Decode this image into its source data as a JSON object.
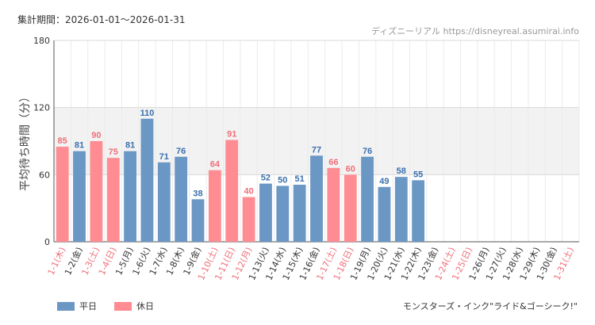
{
  "header": {
    "period_label": "集計期間：2026-01-01〜2026-01-31",
    "source_label": "ディズニーリアル https://disneyreal.asumirai.info"
  },
  "footer": {
    "attraction_title": "モンスターズ・インク\"ライド&ゴーシーク!\""
  },
  "colors": {
    "weekday": "#6b97c5",
    "holiday": "#ff8c92",
    "weekday_text": "#3a70ad",
    "holiday_text": "#ef6f79",
    "band": "#f2f2f2"
  },
  "chart_data": {
    "type": "bar",
    "ylabel": "平均待ち時間（分）",
    "ylim": [
      0,
      180
    ],
    "yticks": [
      0,
      60,
      120,
      180
    ],
    "bands": [
      [
        60,
        120
      ]
    ],
    "legend": [
      {
        "name": "平日",
        "kind": "weekday"
      },
      {
        "name": "休日",
        "kind": "holiday"
      }
    ],
    "categories": [
      "1-1(木)",
      "1-2(金)",
      "1-3(土)",
      "1-4(日)",
      "1-5(月)",
      "1-6(火)",
      "1-7(水)",
      "1-8(木)",
      "1-9(金)",
      "1-10(土)",
      "1-11(日)",
      "1-12(月)",
      "1-13(火)",
      "1-14(水)",
      "1-15(木)",
      "1-16(金)",
      "1-17(土)",
      "1-18(日)",
      "1-19(月)",
      "1-20(火)",
      "1-21(水)",
      "1-22(木)",
      "1-23(金)",
      "1-24(土)",
      "1-25(日)",
      "1-26(月)",
      "1-27(火)",
      "1-28(水)",
      "1-29(木)",
      "1-30(金)",
      "1-31(土)"
    ],
    "day_kind": [
      "holiday",
      "weekday",
      "holiday",
      "holiday",
      "weekday",
      "weekday",
      "weekday",
      "weekday",
      "weekday",
      "holiday",
      "holiday",
      "holiday",
      "weekday",
      "weekday",
      "weekday",
      "weekday",
      "holiday",
      "holiday",
      "weekday",
      "weekday",
      "weekday",
      "weekday",
      "weekday",
      "holiday",
      "holiday",
      "weekday",
      "weekday",
      "weekday",
      "weekday",
      "weekday",
      "holiday"
    ],
    "values": [
      85,
      81,
      90,
      75,
      81,
      110,
      71,
      76,
      38,
      64,
      91,
      40,
      52,
      50,
      51,
      77,
      66,
      60,
      76,
      49,
      58,
      55,
      null,
      null,
      null,
      null,
      null,
      null,
      null,
      null,
      null
    ]
  }
}
